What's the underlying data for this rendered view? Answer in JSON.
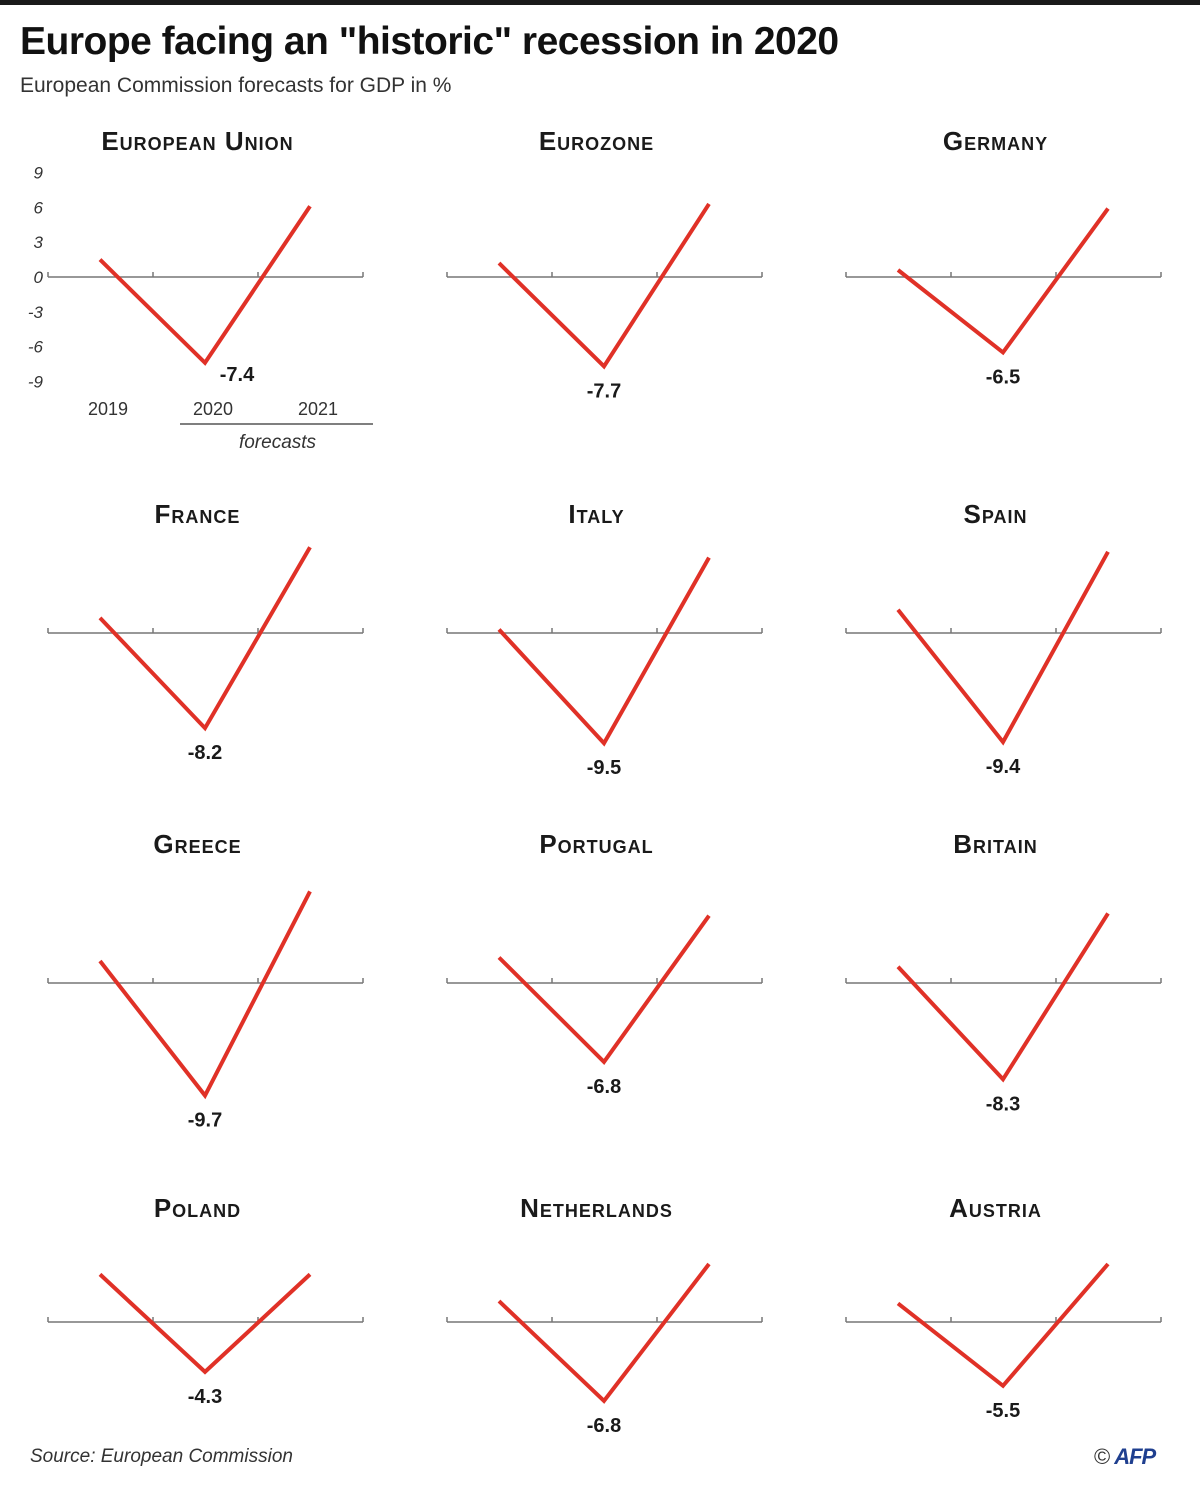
{
  "header": {
    "title": "Europe facing an \"historic\" recession in 2020",
    "subtitle": "European Commission forecasts for GDP in %"
  },
  "footer": {
    "source": "Source: European Commission",
    "copyright": "©",
    "logo": "AFP"
  },
  "colors": {
    "line": "#e03127",
    "axis": "#777777",
    "text": "#1a1a1a"
  },
  "chart_data": {
    "type": "line",
    "x": [
      "2019",
      "2020",
      "2021"
    ],
    "forecast_label": "forecasts",
    "yticks": [
      9,
      6,
      3,
      0,
      -3,
      -6,
      -9
    ],
    "ylim": [
      -10,
      10
    ],
    "panels": [
      {
        "name": "European Union",
        "values": [
          1.5,
          -7.4,
          6.1
        ]
      },
      {
        "name": "Eurozone",
        "values": [
          1.2,
          -7.7,
          6.3
        ]
      },
      {
        "name": "Germany",
        "values": [
          0.6,
          -6.5,
          5.9
        ]
      },
      {
        "name": "France",
        "values": [
          1.3,
          -8.2,
          7.4
        ]
      },
      {
        "name": "Italy",
        "values": [
          0.3,
          -9.5,
          6.5
        ]
      },
      {
        "name": "Spain",
        "values": [
          2.0,
          -9.4,
          7.0
        ]
      },
      {
        "name": "Greece",
        "values": [
          1.9,
          -9.7,
          7.9
        ]
      },
      {
        "name": "Portugal",
        "values": [
          2.2,
          -6.8,
          5.8
        ]
      },
      {
        "name": "Britain",
        "values": [
          1.4,
          -8.3,
          6.0
        ]
      },
      {
        "name": "Poland",
        "values": [
          4.1,
          -4.3,
          4.1
        ]
      },
      {
        "name": "Netherlands",
        "values": [
          1.8,
          -6.8,
          5.0
        ]
      },
      {
        "name": "Austria",
        "values": [
          1.6,
          -5.5,
          5.0
        ]
      }
    ]
  }
}
